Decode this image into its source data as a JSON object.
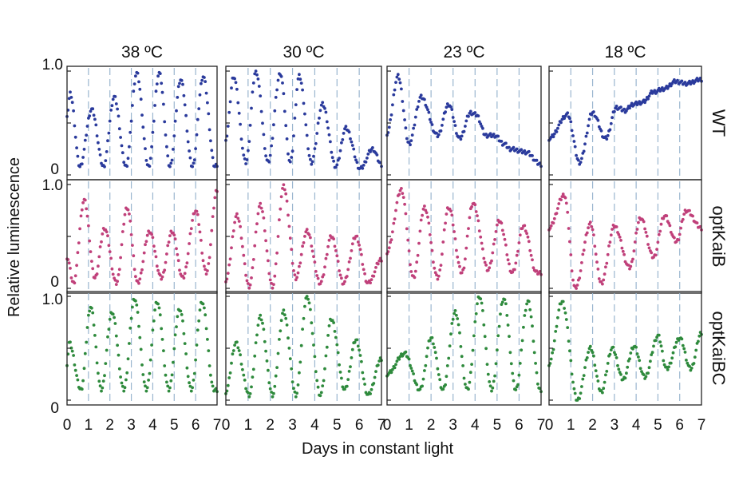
{
  "chart_data": {
    "type": "scatter",
    "xlabel": "Days in constant light",
    "ylabel": "Relative luminescence",
    "x_ticks": [
      "0",
      "1",
      "2",
      "3",
      "4",
      "5",
      "6",
      "7"
    ],
    "y_tick_top": "1.0",
    "y_tick_bottom": "0",
    "xlim": [
      0,
      7
    ],
    "ylim": [
      0,
      1
    ],
    "columns": [
      "38 ºC",
      "30 ºC",
      "23 ºC",
      "18 ºC"
    ],
    "rows": [
      {
        "label": "WT",
        "color": "#2a3a9c"
      },
      {
        "label": "optKaiB",
        "color": "#c0407a"
      },
      {
        "label": "optKaiBC",
        "color": "#2e8a3c"
      }
    ],
    "panels": [
      [
        {
          "peaks": [
            [
              0.15,
              0.78
            ],
            [
              1.15,
              0.63
            ],
            [
              2.2,
              0.75
            ],
            [
              3.25,
              0.98
            ],
            [
              4.3,
              0.98
            ],
            [
              5.3,
              0.92
            ],
            [
              6.35,
              0.95
            ]
          ],
          "troughs": [
            [
              0,
              0.58
            ],
            [
              0.6,
              0.08
            ],
            [
              1.7,
              0.08
            ],
            [
              2.75,
              0.08
            ],
            [
              3.8,
              0.08
            ],
            [
              4.8,
              0.08
            ],
            [
              5.85,
              0.08
            ],
            [
              6.9,
              0.08
            ],
            [
              7,
              0.1
            ]
          ]
        },
        {
          "peaks": [
            [
              0.35,
              0.95
            ],
            [
              1.35,
              1.0
            ],
            [
              2.45,
              0.98
            ],
            [
              3.3,
              0.95
            ],
            [
              4.35,
              0.68
            ],
            [
              5.4,
              0.45
            ],
            [
              6.6,
              0.25
            ]
          ],
          "troughs": [
            [
              0,
              0.35
            ],
            [
              0.9,
              0.12
            ],
            [
              1.9,
              0.12
            ],
            [
              2.9,
              0.12
            ],
            [
              3.85,
              0.12
            ],
            [
              4.95,
              0.08
            ],
            [
              6.05,
              0.06
            ],
            [
              7,
              0.1
            ]
          ]
        },
        {
          "peaks": [
            [
              0.5,
              0.95
            ],
            [
              1.55,
              0.75
            ],
            [
              2.8,
              0.68
            ],
            [
              3.8,
              0.6
            ],
            [
              4.05,
              0.58
            ],
            [
              4.9,
              0.38
            ],
            [
              5.6,
              0.25
            ]
          ],
          "troughs": [
            [
              0,
              0.4
            ],
            [
              1.0,
              0.3
            ],
            [
              2.3,
              0.38
            ],
            [
              3.3,
              0.35
            ],
            [
              4.5,
              0.38
            ],
            [
              5.3,
              0.3
            ],
            [
              6.3,
              0.22
            ],
            [
              7,
              0.1
            ]
          ]
        },
        {
          "peaks": [
            [
              0.85,
              0.58
            ],
            [
              2.0,
              0.6
            ],
            [
              3.1,
              0.65
            ],
            [
              3.85,
              0.68
            ],
            [
              4.8,
              0.8
            ],
            [
              5.8,
              0.9
            ],
            [
              7.0,
              0.92
            ]
          ],
          "troughs": [
            [
              0,
              0.35
            ],
            [
              1.4,
              0.12
            ],
            [
              2.6,
              0.35
            ],
            [
              3.5,
              0.62
            ],
            [
              4.3,
              0.7
            ],
            [
              5.3,
              0.83
            ],
            [
              6.3,
              0.88
            ]
          ]
        }
      ],
      [
        {
          "peaks": [
            [
              0.8,
              0.85
            ],
            [
              1.75,
              0.58
            ],
            [
              2.8,
              0.78
            ],
            [
              3.85,
              0.55
            ],
            [
              4.9,
              0.55
            ],
            [
              6.0,
              0.75
            ],
            [
              7.0,
              0.95
            ]
          ],
          "troughs": [
            [
              0,
              0.3
            ],
            [
              0.3,
              0.05
            ],
            [
              1.3,
              0.1
            ],
            [
              2.3,
              0.05
            ],
            [
              3.3,
              0.05
            ],
            [
              4.4,
              0.1
            ],
            [
              5.4,
              0.1
            ],
            [
              6.5,
              0.15
            ]
          ]
        },
        {
          "peaks": [
            [
              0.5,
              0.7
            ],
            [
              1.55,
              0.8
            ],
            [
              2.6,
              0.98
            ],
            [
              3.65,
              0.55
            ],
            [
              4.75,
              0.5
            ],
            [
              5.85,
              0.5
            ],
            [
              7.0,
              0.28
            ]
          ],
          "troughs": [
            [
              0,
              0.08
            ],
            [
              1.05,
              0.02
            ],
            [
              2.1,
              0.02
            ],
            [
              3.15,
              0.1
            ],
            [
              4.25,
              0.05
            ],
            [
              5.3,
              0.05
            ],
            [
              6.4,
              0.05
            ]
          ]
        },
        {
          "peaks": [
            [
              0.65,
              0.95
            ],
            [
              1.7,
              0.78
            ],
            [
              2.8,
              0.78
            ],
            [
              3.9,
              0.82
            ],
            [
              5.1,
              0.65
            ],
            [
              6.2,
              0.6
            ]
          ],
          "troughs": [
            [
              0,
              0.35
            ],
            [
              1.2,
              0.1
            ],
            [
              2.3,
              0.1
            ],
            [
              3.4,
              0.15
            ],
            [
              4.6,
              0.18
            ],
            [
              5.7,
              0.15
            ],
            [
              6.8,
              0.15
            ]
          ]
        },
        {
          "peaks": [
            [
              0.7,
              0.9
            ],
            [
              1.9,
              0.62
            ],
            [
              3.0,
              0.6
            ],
            [
              4.2,
              0.68
            ],
            [
              5.3,
              0.7
            ],
            [
              6.3,
              0.75
            ],
            [
              7.0,
              0.58
            ]
          ],
          "troughs": [
            [
              0,
              0.58
            ],
            [
              1.2,
              0.0
            ],
            [
              2.4,
              0.05
            ],
            [
              3.7,
              0.2
            ],
            [
              4.8,
              0.3
            ],
            [
              5.85,
              0.45
            ]
          ]
        }
      ],
      [
        {
          "peaks": [
            [
              0.1,
              0.55
            ],
            [
              1.1,
              0.9
            ],
            [
              2.1,
              0.85
            ],
            [
              3.15,
              0.98
            ],
            [
              4.2,
              0.95
            ],
            [
              5.25,
              0.88
            ],
            [
              6.3,
              0.95
            ]
          ],
          "troughs": [
            [
              0,
              0.35
            ],
            [
              0.65,
              0.1
            ],
            [
              1.6,
              0.1
            ],
            [
              2.65,
              0.1
            ],
            [
              3.7,
              0.1
            ],
            [
              4.75,
              0.1
            ],
            [
              5.8,
              0.1
            ],
            [
              6.85,
              0.1
            ]
          ]
        },
        {
          "peaks": [
            [
              0.45,
              0.55
            ],
            [
              1.55,
              0.8
            ],
            [
              2.6,
              0.85
            ],
            [
              3.65,
              1.0
            ],
            [
              4.75,
              0.78
            ],
            [
              5.85,
              0.58
            ],
            [
              7.0,
              0.4
            ]
          ],
          "troughs": [
            [
              0,
              0.08
            ],
            [
              1.05,
              0.05
            ],
            [
              2.1,
              0.05
            ],
            [
              3.15,
              0.05
            ],
            [
              4.25,
              0.05
            ],
            [
              5.35,
              0.1
            ],
            [
              6.4,
              0.05
            ]
          ]
        },
        {
          "peaks": [
            [
              0.8,
              0.45
            ],
            [
              2.0,
              0.6
            ],
            [
              3.1,
              0.85
            ],
            [
              4.2,
              1.0
            ],
            [
              5.3,
              0.98
            ],
            [
              6.4,
              0.95
            ]
          ],
          "troughs": [
            [
              0,
              0.25
            ],
            [
              1.5,
              0.1
            ],
            [
              2.55,
              0.1
            ],
            [
              3.65,
              0.1
            ],
            [
              4.75,
              0.1
            ],
            [
              5.85,
              0.1
            ],
            [
              6.95,
              0.1
            ]
          ]
        },
        {
          "peaks": [
            [
              0.6,
              0.95
            ],
            [
              1.9,
              0.5
            ],
            [
              2.9,
              0.5
            ],
            [
              3.9,
              0.52
            ],
            [
              5.0,
              0.62
            ],
            [
              6.0,
              0.6
            ],
            [
              7.0,
              0.65
            ]
          ],
          "troughs": [
            [
              0,
              0.35
            ],
            [
              1.3,
              0.0
            ],
            [
              2.4,
              0.08
            ],
            [
              3.4,
              0.2
            ],
            [
              4.4,
              0.22
            ],
            [
              5.4,
              0.3
            ],
            [
              6.5,
              0.3
            ]
          ]
        }
      ]
    ]
  }
}
